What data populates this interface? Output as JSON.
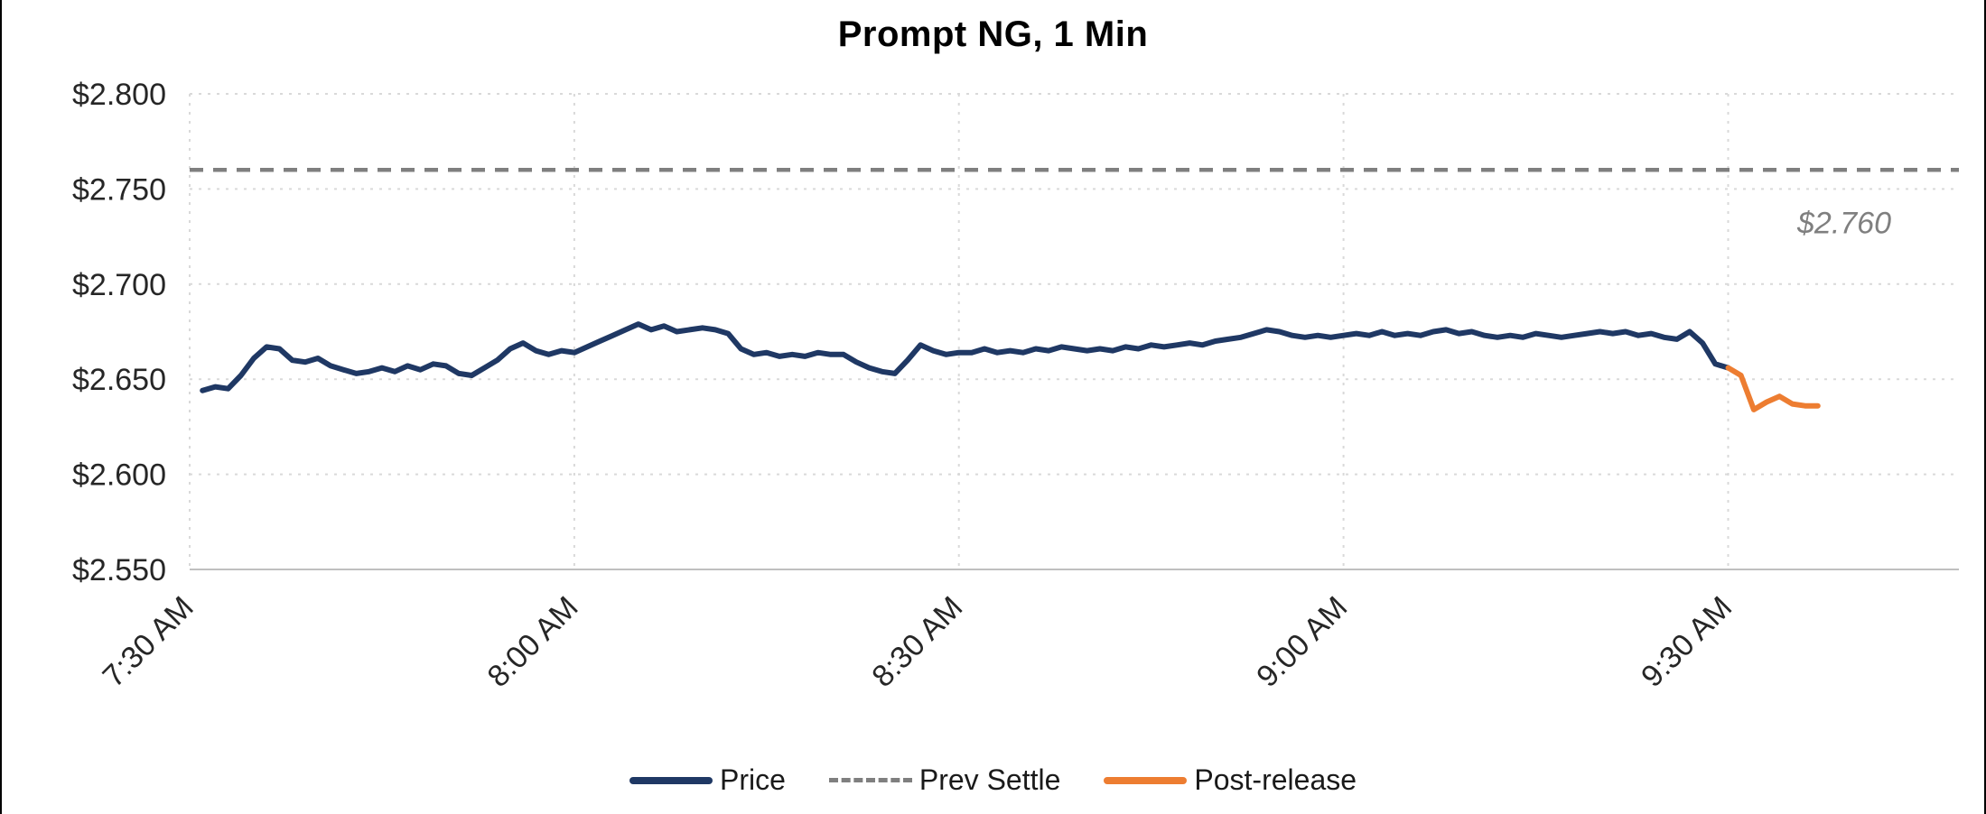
{
  "chart_data": {
    "type": "line",
    "title": "Prompt NG, 1 Min",
    "grid": true,
    "legend_position": "bottom",
    "colors": {
      "background": "#ffffff",
      "grid": "#d9d9d9",
      "axis_line": "#bfbfbf",
      "axis_text": "#262626",
      "title": "#000000",
      "price": "#1f3864",
      "prev_settle": "#7f7f7f",
      "post_release": "#ed7d31",
      "annotation": "#7f7f7f"
    },
    "x_axis": {
      "domain": [
        "7:30",
        "9:48"
      ],
      "ticks": [
        {
          "label": "7:30 AM",
          "t": "7:30"
        },
        {
          "label": "8:00 AM",
          "t": "8:00"
        },
        {
          "label": "8:30 AM",
          "t": "8:30"
        },
        {
          "label": "9:00 AM",
          "t": "9:00"
        },
        {
          "label": "9:30 AM",
          "t": "9:30"
        }
      ]
    },
    "y_axis": {
      "domain": [
        2.55,
        2.8
      ],
      "ticks": [
        {
          "label": "$2.800",
          "v": 2.8
        },
        {
          "label": "$2.750",
          "v": 2.75
        },
        {
          "label": "$2.700",
          "v": 2.7
        },
        {
          "label": "$2.650",
          "v": 2.65
        },
        {
          "label": "$2.600",
          "v": 2.6
        },
        {
          "label": "$2.550",
          "v": 2.55
        }
      ]
    },
    "series": [
      {
        "name": "Price",
        "type": "line",
        "color": "#1f3864",
        "dash": "solid",
        "start": "7:31",
        "interval_min": 1,
        "values": [
          2.644,
          2.646,
          2.645,
          2.652,
          2.661,
          2.667,
          2.666,
          2.66,
          2.659,
          2.661,
          2.657,
          2.655,
          2.653,
          2.654,
          2.656,
          2.654,
          2.657,
          2.655,
          2.658,
          2.657,
          2.653,
          2.652,
          2.656,
          2.66,
          2.666,
          2.669,
          2.665,
          2.663,
          2.665,
          2.664,
          2.667,
          2.67,
          2.673,
          2.676,
          2.679,
          2.676,
          2.678,
          2.675,
          2.676,
          2.677,
          2.676,
          2.674,
          2.666,
          2.663,
          2.664,
          2.662,
          2.663,
          2.662,
          2.664,
          2.663,
          2.663,
          2.659,
          2.656,
          2.654,
          2.653,
          2.66,
          2.668,
          2.665,
          2.663,
          2.664,
          2.664,
          2.666,
          2.664,
          2.665,
          2.664,
          2.666,
          2.665,
          2.667,
          2.666,
          2.665,
          2.666,
          2.665,
          2.667,
          2.666,
          2.668,
          2.667,
          2.668,
          2.669,
          2.668,
          2.67,
          2.671,
          2.672,
          2.674,
          2.676,
          2.675,
          2.673,
          2.672,
          2.673,
          2.672,
          2.673,
          2.674,
          2.673,
          2.675,
          2.673,
          2.674,
          2.673,
          2.675,
          2.676,
          2.674,
          2.675,
          2.673,
          2.672,
          2.673,
          2.672,
          2.674,
          2.673,
          2.672,
          2.673,
          2.674,
          2.675,
          2.674,
          2.675,
          2.673,
          2.674,
          2.672,
          2.671,
          2.675,
          2.669,
          2.658,
          2.656
        ]
      },
      {
        "name": "Prev Settle",
        "type": "hline",
        "color": "#7f7f7f",
        "dash": "dashed",
        "value": 2.76,
        "annotation": "$2.760"
      },
      {
        "name": "Post-release",
        "type": "line",
        "color": "#ed7d31",
        "dash": "solid",
        "start": "9:30",
        "interval_min": 1,
        "values": [
          2.656,
          2.652,
          2.634,
          2.638,
          2.641,
          2.637,
          2.636,
          2.636
        ]
      }
    ]
  }
}
